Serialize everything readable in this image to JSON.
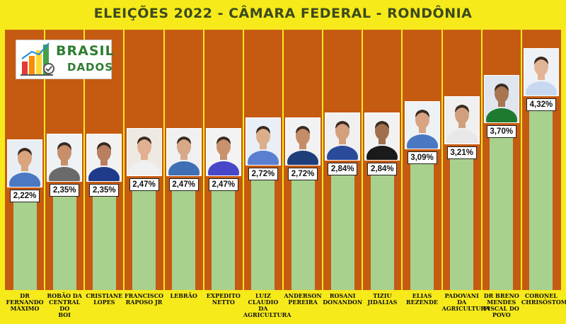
{
  "chart_data": {
    "type": "bar",
    "title": "ELEIÇÕES 2022 - CÂMARA FEDERAL - RONDÔNIA",
    "categories": [
      "DR FERNANDO MÁXIMO",
      "ROBÃO DA CENTRAL DO BOI",
      "CRISTIANE LOPES",
      "FRANCISCO RAPOSO JR",
      "LEBRÃO",
      "EXPEDITO NETTO",
      "LUIZ CLAUDIO DA AGRICULTURA",
      "ANDERSON PEREIRA",
      "ROSANI DONANDON",
      "TIZIU JIDALIAS",
      "ELIAS REZENDE",
      "PADOVANI DA AGRICULTURA",
      "DR BRENO MENDES FISCAL DO POVO",
      "CORONEL CHRISÓSTOMO"
    ],
    "category_lines": [
      "DR FERNANDO\nMÁXIMO",
      "ROBÃO DA\nCENTRAL DO\nBOI",
      "CRISTIANE\nLOPES",
      "FRANCISCO\nRAPOSO JR",
      "LEBRÃO",
      "EXPEDITO\nNETTO",
      "LUIZ CLAUDIO\nDA\nAGRICULTURA",
      "ANDERSON\nPEREIRA",
      "ROSANI\nDONANDON",
      "TIZIU JIDALIAS",
      "ELIAS\nREZENDE",
      "PADOVANI DA\nAGRICULTURA",
      "DR BRENO\nMENDES\nFISCAL DO\nPOVO",
      "CORONEL\nCHRISÓSTOMO"
    ],
    "values": [
      2.22,
      2.35,
      2.35,
      2.47,
      2.47,
      2.47,
      2.72,
      2.72,
      2.84,
      2.84,
      3.09,
      3.21,
      3.7,
      4.32
    ],
    "value_labels": [
      "2,22%",
      "2,35%",
      "2,35%",
      "2,47%",
      "2,47%",
      "2,47%",
      "2,72%",
      "2,72%",
      "2,84%",
      "2,84%",
      "3,09%",
      "3,21%",
      "3,70%",
      "4,32%"
    ],
    "ylim": [
      0,
      4.8
    ],
    "grid": false,
    "legend": "none",
    "colors": {
      "background": "#f6ea1b",
      "plot": "#c55a11",
      "bar": "#a9d18e",
      "title": "#3d4a1c"
    }
  },
  "logo": {
    "line1": "BRASIL",
    "line2": "DADOS",
    "icon": "bar-chart-growth-icon"
  }
}
